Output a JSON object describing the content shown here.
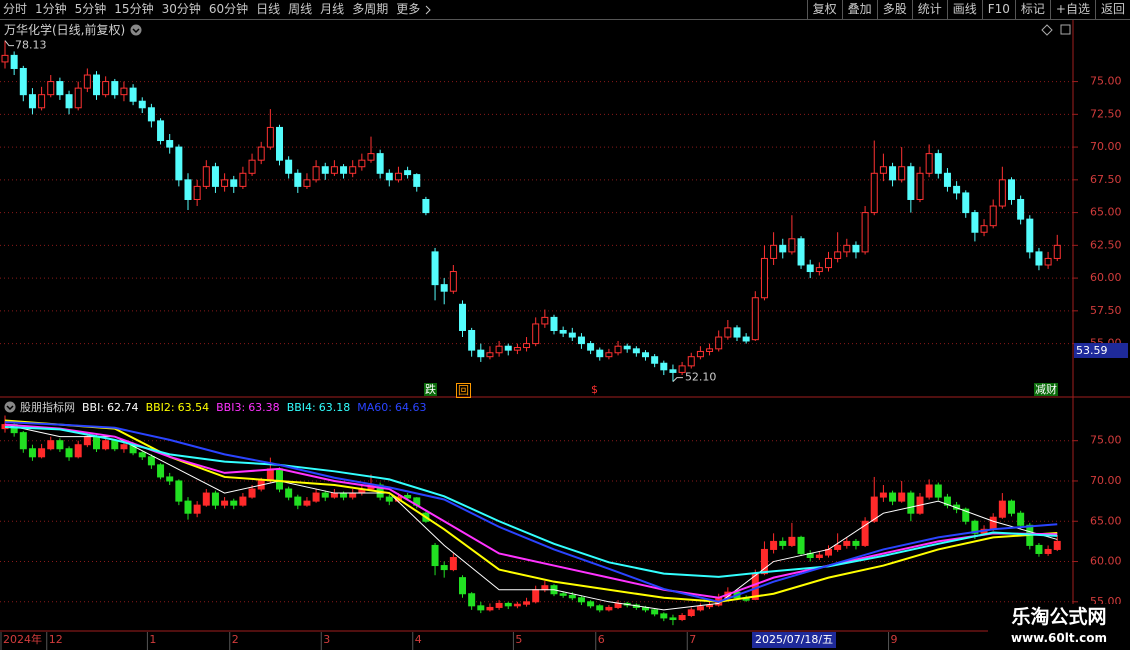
{
  "toolbar": {
    "left": [
      "分时",
      "1分钟",
      "5分钟",
      "15分钟",
      "30分钟",
      "60分钟",
      "日线",
      "周线",
      "月线",
      "多周期",
      "更多"
    ],
    "right": [
      "复权",
      "叠加",
      "多股",
      "统计",
      "画线",
      "F10",
      "标记",
      "+自选",
      "返回"
    ]
  },
  "chart_data": [
    {
      "type": "candlestick",
      "title": "万华化学(日线,前复权)",
      "up_color": "#ff3232",
      "down_color": "#54fcfc",
      "grid": true,
      "ylim": [
        51,
        79.7
      ],
      "yticks": [
        {
          "value": 75,
          "label": "75.00"
        },
        {
          "value": 72.5,
          "label": "72.50"
        },
        {
          "value": 70,
          "label": "70.00"
        },
        {
          "value": 67.5,
          "label": "67.50"
        },
        {
          "value": 65,
          "label": "65.00"
        },
        {
          "value": 62.5,
          "label": "62.50"
        },
        {
          "value": 60,
          "label": "60.00"
        },
        {
          "value": 57.5,
          "label": "57.50"
        },
        {
          "value": 55,
          "label": "55.00"
        }
      ],
      "high_label": "78.13",
      "low_label": "52.10",
      "cursor_price": 53.59,
      "cursor_date": "2025/07/18/五",
      "signals": [
        "跌",
        "回",
        "$",
        "减财"
      ],
      "categories": [
        "2024年",
        null,
        null,
        null,
        null,
        "12",
        null,
        null,
        null,
        null,
        null,
        null,
        null,
        null,
        null,
        null,
        "1",
        null,
        null,
        null,
        null,
        null,
        null,
        null,
        null,
        "2",
        null,
        null,
        null,
        null,
        null,
        null,
        null,
        null,
        null,
        "3",
        null,
        null,
        null,
        null,
        null,
        null,
        null,
        null,
        null,
        "4",
        null,
        null,
        null,
        null,
        null,
        null,
        null,
        null,
        null,
        null,
        "5",
        null,
        null,
        null,
        null,
        null,
        null,
        null,
        null,
        "6",
        null,
        null,
        null,
        null,
        null,
        null,
        null,
        null,
        null,
        "7",
        null,
        null,
        null,
        null,
        null,
        null,
        null,
        null,
        null,
        null,
        null,
        null,
        null,
        null,
        null,
        null,
        null,
        null,
        null,
        null,
        null,
        "9",
        null,
        null,
        null,
        null,
        null,
        null,
        null,
        null,
        null,
        null,
        null,
        null,
        null,
        null,
        null,
        null,
        null
      ],
      "candles": [
        [
          76.5,
          78.13,
          76,
          77
        ],
        [
          77,
          77.3,
          75.5,
          76
        ],
        [
          76,
          76.2,
          73.5,
          74
        ],
        [
          74,
          74.5,
          72.5,
          73
        ],
        [
          73,
          74.6,
          72.8,
          74
        ],
        [
          74,
          75.5,
          73.8,
          75
        ],
        [
          75,
          75.3,
          73.6,
          74
        ],
        [
          74,
          74.3,
          72.5,
          73
        ],
        [
          73,
          75,
          72.8,
          74.5
        ],
        [
          74.5,
          76,
          74.2,
          75.5
        ],
        [
          75.5,
          75.8,
          73.6,
          74
        ],
        [
          74,
          75.4,
          73.8,
          75
        ],
        [
          75,
          75.2,
          73.7,
          74
        ],
        [
          74,
          75,
          73.5,
          74.5
        ],
        [
          74.5,
          74.8,
          73.2,
          73.5
        ],
        [
          73.5,
          73.8,
          72.6,
          73
        ],
        [
          73,
          73.3,
          71.5,
          72
        ],
        [
          72,
          72.2,
          70.2,
          70.5
        ],
        [
          70.5,
          71,
          69.5,
          70
        ],
        [
          70,
          70.2,
          67,
          67.5
        ],
        [
          67.5,
          68,
          65.2,
          66
        ],
        [
          66,
          67.5,
          65.5,
          67
        ],
        [
          67,
          69,
          66.8,
          68.5
        ],
        [
          68.5,
          68.8,
          66.5,
          67
        ],
        [
          67,
          68,
          66.6,
          67.5
        ],
        [
          67.5,
          67.8,
          66.5,
          67
        ],
        [
          67,
          68.5,
          66.8,
          68
        ],
        [
          68,
          69.5,
          67.8,
          69
        ],
        [
          69,
          70.4,
          68.7,
          70
        ],
        [
          70,
          72.9,
          69.8,
          71.5
        ],
        [
          71.5,
          71.7,
          68.6,
          69
        ],
        [
          69,
          69.3,
          67.6,
          68
        ],
        [
          68,
          68.3,
          66.5,
          67
        ],
        [
          67,
          68,
          66.8,
          67.5
        ],
        [
          67.5,
          69,
          67.3,
          68.5
        ],
        [
          68.5,
          68.8,
          67.5,
          68
        ],
        [
          68,
          69,
          67.8,
          68.5
        ],
        [
          68.5,
          68.7,
          67.6,
          68
        ],
        [
          68,
          69,
          67.7,
          68.5
        ],
        [
          68.5,
          69.5,
          68.2,
          69
        ],
        [
          69,
          70.8,
          68.8,
          69.5
        ],
        [
          69.5,
          69.8,
          67.6,
          68
        ],
        [
          68,
          68.3,
          67,
          67.5
        ],
        [
          67.5,
          68.5,
          67.3,
          68
        ],
        [
          68.2,
          68.5,
          67.6,
          67.9
        ],
        [
          67.9,
          68,
          66.6,
          67
        ],
        [
          66,
          66.2,
          64.8,
          65
        ],
        [
          62,
          62.3,
          58.3,
          59.5
        ],
        [
          59.5,
          60,
          58,
          59
        ],
        [
          59,
          61,
          58.8,
          60.5
        ],
        [
          58,
          58.3,
          55.5,
          56
        ],
        [
          56,
          56.2,
          54,
          54.5
        ],
        [
          54.5,
          55,
          53.6,
          54
        ],
        [
          54,
          54.8,
          53.8,
          54.3
        ],
        [
          54.3,
          55.2,
          54,
          54.8
        ],
        [
          54.8,
          55,
          54.1,
          54.5
        ],
        [
          54.5,
          55,
          54.2,
          54.7
        ],
        [
          54.7,
          55.5,
          54.4,
          55
        ],
        [
          55,
          57,
          54.8,
          56.5
        ],
        [
          56.5,
          57.6,
          56.2,
          57
        ],
        [
          57,
          57.2,
          55.7,
          56
        ],
        [
          56,
          56.3,
          55.5,
          55.8
        ],
        [
          55.8,
          56.2,
          55.2,
          55.5
        ],
        [
          55.5,
          55.8,
          54.6,
          55
        ],
        [
          55,
          55.2,
          54.2,
          54.5
        ],
        [
          54.5,
          54.7,
          53.7,
          54
        ],
        [
          54,
          54.6,
          53.8,
          54.3
        ],
        [
          54.3,
          55.2,
          54.1,
          54.8
        ],
        [
          54.8,
          55,
          54.3,
          54.6
        ],
        [
          54.6,
          54.8,
          54,
          54.3
        ],
        [
          54.3,
          54.5,
          53.7,
          54
        ],
        [
          54,
          54.2,
          53.2,
          53.5
        ],
        [
          53.5,
          53.7,
          52.6,
          53
        ],
        [
          53,
          53.4,
          52.1,
          52.8
        ],
        [
          52.8,
          53.6,
          52.6,
          53.3
        ],
        [
          53.3,
          54.3,
          53.1,
          54
        ],
        [
          54,
          54.8,
          53.8,
          54.4
        ],
        [
          54.4,
          55,
          54.1,
          54.6
        ],
        [
          54.6,
          56,
          54.4,
          55.5
        ],
        [
          55.5,
          56.8,
          55.3,
          56.2
        ],
        [
          56.2,
          56.4,
          55.2,
          55.5
        ],
        [
          55.5,
          55.8,
          55,
          55.2
        ],
        [
          55.3,
          59,
          55.2,
          58.5
        ],
        [
          58.5,
          62.5,
          58.3,
          61.5
        ],
        [
          61.5,
          63.5,
          61,
          62.5
        ],
        [
          62.5,
          63,
          61.5,
          62
        ],
        [
          62,
          64.8,
          61.8,
          63
        ],
        [
          63,
          63.2,
          60.7,
          61
        ],
        [
          61,
          61.4,
          60,
          60.5
        ],
        [
          60.5,
          61.2,
          60.2,
          60.8
        ],
        [
          60.8,
          62,
          60.5,
          61.5
        ],
        [
          61.5,
          63.5,
          61.2,
          62
        ],
        [
          62,
          63,
          61.6,
          62.5
        ],
        [
          62.5,
          62.8,
          61.5,
          62
        ],
        [
          62,
          65.5,
          61.8,
          65
        ],
        [
          65,
          70.5,
          64.8,
          68
        ],
        [
          68,
          69.5,
          67.4,
          68.5
        ],
        [
          68.5,
          68.8,
          67,
          67.5
        ],
        [
          67.5,
          70,
          67.3,
          68.5
        ],
        [
          68.5,
          68.8,
          65,
          66
        ],
        [
          66,
          68.5,
          65.8,
          68
        ],
        [
          68,
          70.2,
          67.7,
          69.5
        ],
        [
          69.5,
          69.8,
          67.6,
          68
        ],
        [
          68,
          68.4,
          66.6,
          67
        ],
        [
          67,
          67.4,
          66,
          66.5
        ],
        [
          66.5,
          66.7,
          64.6,
          65
        ],
        [
          65,
          65.2,
          62.8,
          63.5
        ],
        [
          63.5,
          64.5,
          63.2,
          64
        ],
        [
          64,
          66,
          63.8,
          65.5
        ],
        [
          65.5,
          68.5,
          65.3,
          67.5
        ],
        [
          67.5,
          67.7,
          65.6,
          66
        ],
        [
          66,
          66.3,
          64.1,
          64.5
        ],
        [
          64.5,
          64.8,
          61.5,
          62
        ],
        [
          62,
          62.3,
          60.6,
          61
        ],
        [
          61,
          62,
          60.7,
          61.5
        ],
        [
          61.5,
          63.3,
          61.3,
          62.5
        ]
      ]
    },
    {
      "type": "line",
      "title": "股朋指标网",
      "legend_separator": ":",
      "up_color": "#ff2a2a",
      "down_color": "#22e022",
      "ylim": [
        51.5,
        80.3
      ],
      "yticks": [
        {
          "value": 75,
          "label": "75.00"
        },
        {
          "value": 70,
          "label": "70.00"
        },
        {
          "value": 65,
          "label": "65.00"
        },
        {
          "value": 60,
          "label": "60.00"
        },
        {
          "value": 55,
          "label": "55.00"
        }
      ],
      "x": [
        0,
        6,
        12,
        18,
        24,
        30,
        36,
        42,
        48,
        54,
        60,
        66,
        72,
        78,
        84,
        90,
        96,
        102,
        108,
        115
      ],
      "series": [
        {
          "name": "BBI",
          "color": "#ffffff",
          "values": [
            77,
            75.5,
            75.5,
            72,
            68.5,
            70,
            68.5,
            68.5,
            62,
            56.5,
            56.5,
            55,
            54,
            54.8,
            60,
            61.5,
            66,
            67.5,
            65,
            62.74
          ]
        },
        {
          "name": "BBI2",
          "color": "#ffff00",
          "values": [
            77.5,
            77,
            76.5,
            73,
            70.5,
            70,
            69.5,
            68.5,
            64,
            59,
            57.5,
            56.5,
            55.5,
            55,
            56,
            58,
            59.5,
            61.5,
            63,
            63.54
          ]
        },
        {
          "name": "BBI3",
          "color": "#ff33ff",
          "values": [
            77,
            76.5,
            75.5,
            73,
            71,
            71.5,
            70,
            69,
            65,
            61,
            59.5,
            58,
            56.5,
            55.5,
            58,
            59.5,
            61,
            62.5,
            63.5,
            63.38
          ]
        },
        {
          "name": "BBI4",
          "color": "#33ffff",
          "values": [
            76.7,
            76.4,
            75.1,
            73.3,
            72.4,
            72,
            71.2,
            70.2,
            68.1,
            65,
            62.2,
            59.9,
            58.5,
            58.1,
            58.8,
            59.4,
            60.7,
            62.2,
            63.6,
            63.18
          ]
        },
        {
          "name": "MA60",
          "color": "#2a44ff",
          "values": [
            77.3,
            77,
            76.6,
            75.1,
            73.3,
            72,
            70.4,
            69.2,
            67.7,
            64.3,
            61.5,
            59.1,
            56.6,
            55,
            57.5,
            59.5,
            61.5,
            63,
            64,
            64.63
          ]
        }
      ]
    }
  ],
  "watermark": {
    "name": "乐淘公式网",
    "url": "www.60lt.com"
  }
}
